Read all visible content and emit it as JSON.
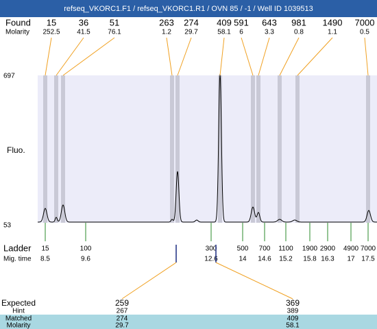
{
  "title": "refseq_VKORC1.F1 / refseq_VKORC1.R1 / OVN 85 / -1 / Well ID 1039513",
  "found": {
    "label": "Found",
    "molarity_label": "Molarity",
    "sizes": [
      15,
      36,
      51,
      263,
      274,
      409,
      591,
      643,
      981,
      1490,
      7000
    ],
    "molarity": [
      252.5,
      41.5,
      76.1,
      1.2,
      29.7,
      58.1,
      6,
      3.3,
      0.8,
      1.1,
      0.5
    ]
  },
  "fluo": {
    "label": "Fluo.",
    "ticks": [
      697,
      53
    ]
  },
  "ladder": {
    "label": "Ladder",
    "time_label": "Mig. time",
    "sizes": [
      15,
      100,
      300,
      500,
      700,
      1100,
      1900,
      2900,
      4900,
      7000
    ],
    "times": [
      8.5,
      9.6,
      12.6,
      14,
      14.6,
      15.2,
      15.8,
      16.3,
      17,
      17.5
    ]
  },
  "expected": {
    "label": "Expected",
    "hint_label": "Hint",
    "matched_label": "Matched",
    "molarity_label": "Molarity",
    "expected": [
      259,
      369
    ],
    "hint": [
      267,
      389
    ],
    "matched": [
      274,
      409
    ],
    "molarity": [
      29.7,
      58.1
    ]
  }
}
